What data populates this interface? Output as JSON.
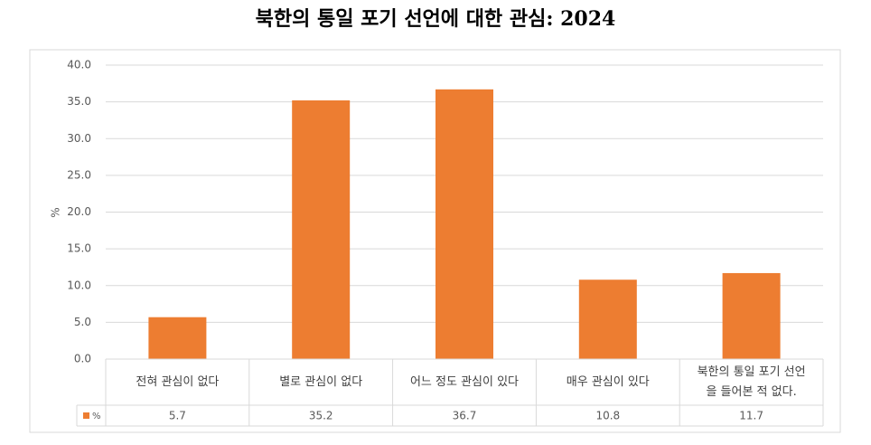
{
  "chart_data": {
    "type": "bar",
    "title": "북한의 통일 포기 선언에 대한 관심: 2024",
    "y_label": "%",
    "categories": [
      "전혀 관심이 없다",
      "별로 관심이 없다",
      "어느 정도 관심이 있다",
      "매우 관심이 있다",
      "북한의 통일 포기 선언을 들어본 적 없다."
    ],
    "series": [
      {
        "name": "%",
        "color": "#ed7d31",
        "values": [
          5.7,
          35.2,
          36.7,
          10.8,
          11.7
        ]
      }
    ],
    "ylim": [
      0,
      40
    ],
    "yticks": [
      {
        "value": 0,
        "label": "0.0"
      },
      {
        "value": 5,
        "label": "5.0"
      },
      {
        "value": 10,
        "label": "10.0"
      },
      {
        "value": 15,
        "label": "15.0"
      },
      {
        "value": 20,
        "label": "20.0"
      },
      {
        "value": 25,
        "label": "25.0"
      },
      {
        "value": 30,
        "label": "30.0"
      },
      {
        "value": 35,
        "label": "35.0"
      },
      {
        "value": 40,
        "label": "40.0"
      }
    ],
    "grid": true,
    "data_table": true
  }
}
